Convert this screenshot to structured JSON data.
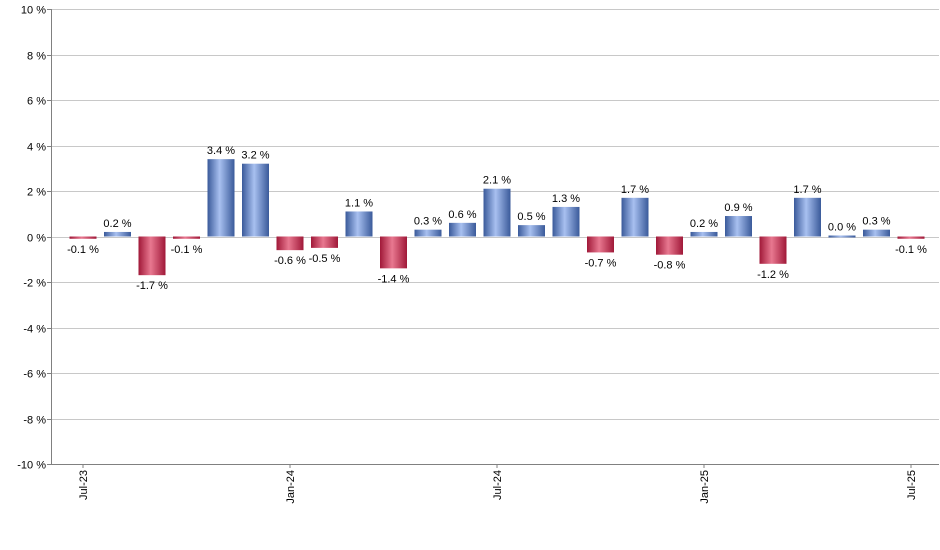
{
  "chart_data": {
    "type": "bar",
    "x": [
      "2023-07",
      "2023-08",
      "2023-09",
      "2023-10",
      "2023-11",
      "2023-12",
      "2024-01",
      "2024-02",
      "2024-03",
      "2024-04",
      "2024-05",
      "2024-06",
      "2024-07",
      "2024-08",
      "2024-09",
      "2024-10",
      "2024-11",
      "2024-12",
      "2025-01",
      "2025-02",
      "2025-03",
      "2025-04",
      "2025-05",
      "2025-06",
      "2025-07"
    ],
    "values": [
      -0.1,
      0.2,
      -1.7,
      -0.1,
      3.4,
      3.2,
      -0.6,
      -0.5,
      1.1,
      -1.4,
      0.3,
      0.6,
      2.1,
      0.5,
      1.3,
      -0.7,
      1.7,
      -0.8,
      0.2,
      0.9,
      -1.2,
      1.7,
      0.0,
      0.3,
      -0.1
    ],
    "data_labels": [
      "-0.1 %",
      "0.2 %",
      "-1.7 %",
      "-0.1 %",
      "3.4 %",
      "3.2 %",
      "-0.6 %",
      "-0.5 %",
      "1.1 %",
      "-1.4 %",
      "0.3 %",
      "0.6 %",
      "2.1 %",
      "0.5 %",
      "1.3 %",
      "-0.7 %",
      "1.7 %",
      "-0.8 %",
      "0.2 %",
      "0.9 %",
      "-1.2 %",
      "1.7 %",
      "0.0 %",
      "0.3 %",
      "-0.1 %"
    ],
    "ylim": [
      -10,
      10
    ],
    "yticks": [
      10,
      8,
      6,
      4,
      2,
      0,
      -2,
      -4,
      -6,
      -8,
      -10
    ],
    "ytick_labels": [
      "10 %",
      "8 %",
      "6 %",
      "4 %",
      "2 %",
      "0 %",
      "-2 %",
      "-4 %",
      "-6 %",
      "-8 %",
      "-10 %"
    ],
    "xtick_labels": [
      {
        "at": "2023-07",
        "label": "Jul-23"
      },
      {
        "at": "2024-01",
        "label": "Jan-24"
      },
      {
        "at": "2024-07",
        "label": "Jul-24"
      },
      {
        "at": "2025-01",
        "label": "Jan-25"
      },
      {
        "at": "2025-07",
        "label": "Jul-25"
      }
    ],
    "grid": true,
    "colors": {
      "positive_light": "#a8c0f0",
      "positive_dark": "#3a5a9a",
      "negative_light": "#e87890",
      "negative_dark": "#a01838",
      "grid": "#c8c8c8",
      "axis": "#808080"
    }
  }
}
